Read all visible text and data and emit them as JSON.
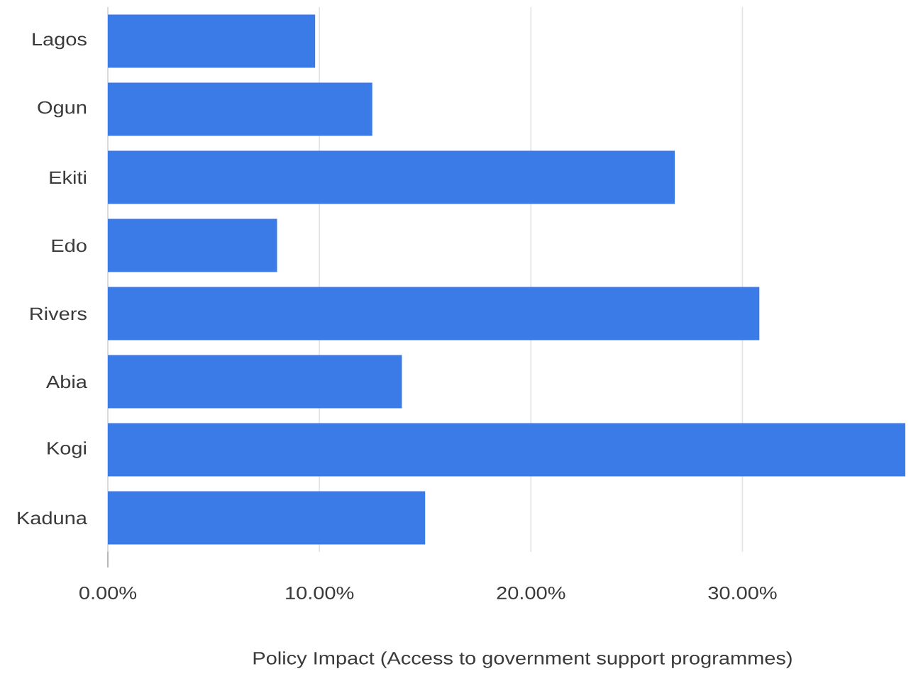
{
  "chart_data": {
    "type": "bar",
    "orientation": "horizontal",
    "categories": [
      "Lagos",
      "Ogun",
      "Ekiti",
      "Edo",
      "Rivers",
      "Abia",
      "Kogi",
      "Kaduna"
    ],
    "values": [
      9.8,
      12.5,
      26.8,
      8.0,
      30.8,
      13.9,
      37.7,
      15.0
    ],
    "color": "#3b7be8",
    "xlabel": "Policy Impact (Access to government support programmes)",
    "xlim": [
      0,
      37.7
    ],
    "xticks": [
      {
        "value": 0,
        "label": "0.00%"
      },
      {
        "value": 10,
        "label": "10.00%"
      },
      {
        "value": 20,
        "label": "20.00%"
      },
      {
        "value": 30,
        "label": "30.00%"
      }
    ],
    "grid": "x"
  }
}
